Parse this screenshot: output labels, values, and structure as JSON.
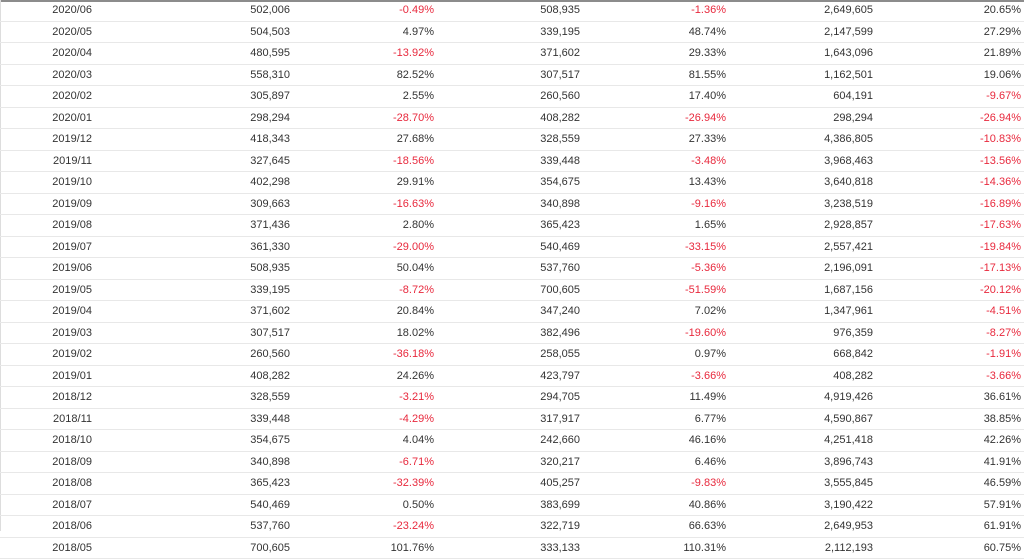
{
  "table": {
    "rows": [
      {
        "month": "2020/06",
        "v1": "502,006",
        "p1": "-0.49%",
        "v2": "508,935",
        "p2": "-1.36%",
        "v3": "2,649,605",
        "p3": "20.65%"
      },
      {
        "month": "2020/05",
        "v1": "504,503",
        "p1": "4.97%",
        "v2": "339,195",
        "p2": "48.74%",
        "v3": "2,147,599",
        "p3": "27.29%"
      },
      {
        "month": "2020/04",
        "v1": "480,595",
        "p1": "-13.92%",
        "v2": "371,602",
        "p2": "29.33%",
        "v3": "1,643,096",
        "p3": "21.89%"
      },
      {
        "month": "2020/03",
        "v1": "558,310",
        "p1": "82.52%",
        "v2": "307,517",
        "p2": "81.55%",
        "v3": "1,162,501",
        "p3": "19.06%"
      },
      {
        "month": "2020/02",
        "v1": "305,897",
        "p1": "2.55%",
        "v2": "260,560",
        "p2": "17.40%",
        "v3": "604,191",
        "p3": "-9.67%"
      },
      {
        "month": "2020/01",
        "v1": "298,294",
        "p1": "-28.70%",
        "v2": "408,282",
        "p2": "-26.94%",
        "v3": "298,294",
        "p3": "-26.94%"
      },
      {
        "month": "2019/12",
        "v1": "418,343",
        "p1": "27.68%",
        "v2": "328,559",
        "p2": "27.33%",
        "v3": "4,386,805",
        "p3": "-10.83%"
      },
      {
        "month": "2019/11",
        "v1": "327,645",
        "p1": "-18.56%",
        "v2": "339,448",
        "p2": "-3.48%",
        "v3": "3,968,463",
        "p3": "-13.56%"
      },
      {
        "month": "2019/10",
        "v1": "402,298",
        "p1": "29.91%",
        "v2": "354,675",
        "p2": "13.43%",
        "v3": "3,640,818",
        "p3": "-14.36%"
      },
      {
        "month": "2019/09",
        "v1": "309,663",
        "p1": "-16.63%",
        "v2": "340,898",
        "p2": "-9.16%",
        "v3": "3,238,519",
        "p3": "-16.89%"
      },
      {
        "month": "2019/08",
        "v1": "371,436",
        "p1": "2.80%",
        "v2": "365,423",
        "p2": "1.65%",
        "v3": "2,928,857",
        "p3": "-17.63%"
      },
      {
        "month": "2019/07",
        "v1": "361,330",
        "p1": "-29.00%",
        "v2": "540,469",
        "p2": "-33.15%",
        "v3": "2,557,421",
        "p3": "-19.84%"
      },
      {
        "month": "2019/06",
        "v1": "508,935",
        "p1": "50.04%",
        "v2": "537,760",
        "p2": "-5.36%",
        "v3": "2,196,091",
        "p3": "-17.13%"
      },
      {
        "month": "2019/05",
        "v1": "339,195",
        "p1": "-8.72%",
        "v2": "700,605",
        "p2": "-51.59%",
        "v3": "1,687,156",
        "p3": "-20.12%"
      },
      {
        "month": "2019/04",
        "v1": "371,602",
        "p1": "20.84%",
        "v2": "347,240",
        "p2": "7.02%",
        "v3": "1,347,961",
        "p3": "-4.51%"
      },
      {
        "month": "2019/03",
        "v1": "307,517",
        "p1": "18.02%",
        "v2": "382,496",
        "p2": "-19.60%",
        "v3": "976,359",
        "p3": "-8.27%"
      },
      {
        "month": "2019/02",
        "v1": "260,560",
        "p1": "-36.18%",
        "v2": "258,055",
        "p2": "0.97%",
        "v3": "668,842",
        "p3": "-1.91%"
      },
      {
        "month": "2019/01",
        "v1": "408,282",
        "p1": "24.26%",
        "v2": "423,797",
        "p2": "-3.66%",
        "v3": "408,282",
        "p3": "-3.66%"
      },
      {
        "month": "2018/12",
        "v1": "328,559",
        "p1": "-3.21%",
        "v2": "294,705",
        "p2": "11.49%",
        "v3": "4,919,426",
        "p3": "36.61%"
      },
      {
        "month": "2018/11",
        "v1": "339,448",
        "p1": "-4.29%",
        "v2": "317,917",
        "p2": "6.77%",
        "v3": "4,590,867",
        "p3": "38.85%"
      },
      {
        "month": "2018/10",
        "v1": "354,675",
        "p1": "4.04%",
        "v2": "242,660",
        "p2": "46.16%",
        "v3": "4,251,418",
        "p3": "42.26%"
      },
      {
        "month": "2018/09",
        "v1": "340,898",
        "p1": "-6.71%",
        "v2": "320,217",
        "p2": "6.46%",
        "v3": "3,896,743",
        "p3": "41.91%"
      },
      {
        "month": "2018/08",
        "v1": "365,423",
        "p1": "-32.39%",
        "v2": "405,257",
        "p2": "-9.83%",
        "v3": "3,555,845",
        "p3": "46.59%"
      },
      {
        "month": "2018/07",
        "v1": "540,469",
        "p1": "0.50%",
        "v2": "383,699",
        "p2": "40.86%",
        "v3": "3,190,422",
        "p3": "57.91%"
      },
      {
        "month": "2018/06",
        "v1": "537,760",
        "p1": "-23.24%",
        "v2": "322,719",
        "p2": "66.63%",
        "v3": "2,649,953",
        "p3": "61.91%"
      },
      {
        "month": "2018/05",
        "v1": "700,605",
        "p1": "101.76%",
        "v2": "333,133",
        "p2": "110.31%",
        "v3": "2,112,193",
        "p3": "60.75%"
      }
    ],
    "colors": {
      "negative": "#e8293d",
      "positive": "#333333",
      "row_border": "#e8e8e8"
    }
  }
}
